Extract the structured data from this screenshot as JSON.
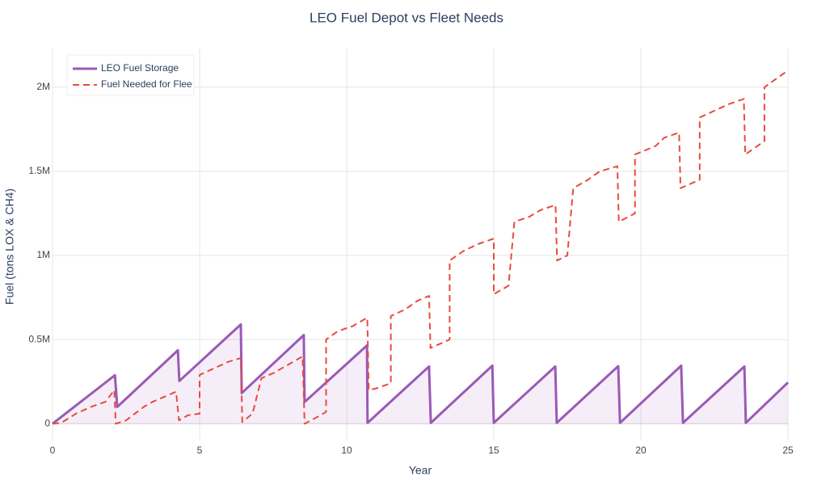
{
  "chart_data": {
    "type": "line",
    "title": "LEO Fuel Depot vs Fleet Needs",
    "xlabel": "Year",
    "ylabel": "Fuel (tons LOX & CH4)",
    "xlim": [
      0,
      25
    ],
    "xticks": [
      0,
      5,
      10,
      15,
      20,
      25
    ],
    "ylim": [
      -100000,
      2230000
    ],
    "yticks": [
      0,
      {
        "value": 500000,
        "label": "0.5M"
      },
      {
        "value": 1000000,
        "label": "1M"
      },
      {
        "value": 1500000,
        "label": "1.5M"
      },
      {
        "value": 2000000,
        "label": "2M"
      }
    ],
    "grid": true,
    "legend": "top-left",
    "series": [
      {
        "name": "LEO Fuel Storage",
        "color": "#9b59b6",
        "dash": "solid",
        "fill": "tozeroy",
        "fill_color": "rgba(155,89,182,0.1)",
        "x": [
          0,
          2.12,
          2.2,
          4.26,
          4.31,
          6.4,
          6.43,
          8.54,
          8.57,
          10.69,
          10.71,
          12.8,
          12.86,
          14.95,
          15.0,
          17.09,
          17.14,
          19.23,
          19.29,
          21.37,
          21.43,
          23.52,
          23.57,
          25
        ],
        "values": [
          0,
          288000,
          100000,
          436000,
          254000,
          590000,
          182000,
          527000,
          129000,
          465000,
          5000,
          340000,
          5000,
          345000,
          5000,
          340000,
          5000,
          342000,
          5000,
          345000,
          5000,
          340000,
          5000,
          245000
        ]
      },
      {
        "name": "Fuel Needed for Flee",
        "color": "#e74c3c",
        "dash": "dash",
        "x": [
          0,
          0.3,
          0.8,
          1.3,
          1.8,
          2.1,
          2.15,
          2.5,
          2.8,
          3.1,
          3.4,
          3.8,
          4.2,
          4.3,
          4.6,
          5.0,
          5.0,
          5.5,
          6.0,
          6.4,
          6.45,
          6.8,
          7.1,
          7.5,
          7.9,
          8.5,
          8.57,
          9.0,
          9.3,
          9.3,
          9.7,
          10.2,
          10.7,
          10.75,
          11.0,
          11.5,
          11.5,
          12.0,
          12.4,
          12.8,
          12.85,
          13.5,
          13.5,
          14.0,
          14.5,
          15.0,
          15.0,
          15.5,
          15.7,
          16.2,
          16.6,
          17.1,
          17.15,
          17.5,
          17.7,
          18.2,
          18.6,
          19.2,
          19.25,
          19.8,
          19.8,
          20.5,
          20.8,
          21.3,
          21.35,
          22.0,
          22.0,
          22.5,
          23.0,
          23.5,
          23.55,
          24.2,
          24.2,
          25
        ],
        "values": [
          0,
          5000,
          60000,
          100000,
          130000,
          200000,
          0,
          20000,
          60000,
          100000,
          130000,
          160000,
          190000,
          20000,
          50000,
          60000,
          290000,
          330000,
          370000,
          390000,
          10000,
          60000,
          270000,
          300000,
          340000,
          400000,
          0,
          40000,
          70000,
          500000,
          550000,
          580000,
          630000,
          200000,
          210000,
          240000,
          640000,
          680000,
          730000,
          760000,
          450000,
          500000,
          970000,
          1030000,
          1070000,
          1100000,
          770000,
          820000,
          1200000,
          1230000,
          1270000,
          1300000,
          970000,
          1000000,
          1400000,
          1450000,
          1500000,
          1530000,
          1200000,
          1250000,
          1600000,
          1650000,
          1700000,
          1730000,
          1400000,
          1450000,
          1820000,
          1860000,
          1900000,
          1930000,
          1600000,
          1680000,
          2000000,
          2100000
        ]
      }
    ]
  }
}
